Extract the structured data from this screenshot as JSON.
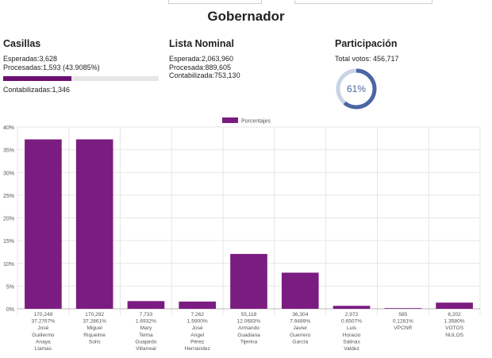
{
  "header": {
    "title": "Gobernador"
  },
  "casillas": {
    "title": "Casillas",
    "esperadas": "Esperadas:3,628",
    "procesadas": "Procesadas:1,593 (43.9085%)",
    "progress": 0.439085,
    "contabilizadas": "Contabilizadas:1,346"
  },
  "lista": {
    "title": "Lista Nominal",
    "esperada": "Esperada:2,063,960",
    "procesada": "Procesada:889,605",
    "contabilizada": "Contabilizada:753,130"
  },
  "participacion": {
    "title": "Participación",
    "total": "Total votos: 456,717",
    "percent_label": "61%",
    "value": 0.61
  },
  "colors": {
    "bar": "#7b1c80",
    "ring": "#4a66a3",
    "ring_track": "#c8d3e5",
    "progress": "#6d0f73"
  },
  "chart_data": {
    "type": "bar",
    "legend": "Porcentajes",
    "legend_position": "top-center",
    "ylim": [
      0,
      40
    ],
    "yticks": [
      "0%",
      "5%",
      "10%",
      "15%",
      "20%",
      "25%",
      "30%",
      "35%",
      "40%"
    ],
    "grid": true,
    "categories": [
      {
        "votes": "170,249",
        "pct": "37.2767%",
        "name": [
          "José",
          "Guillermo",
          "Anaya",
          "Llamas"
        ]
      },
      {
        "votes": "170,292",
        "pct": "37.2861%",
        "name": [
          "Miguel",
          "Riquelme",
          "Solís"
        ]
      },
      {
        "votes": "7,733",
        "pct": "1.6932%",
        "name": [
          "Mary",
          "Telma",
          "Guajardo",
          "Villarreal"
        ]
      },
      {
        "votes": "7,262",
        "pct": "1.5900%",
        "name": [
          "José",
          "Angel",
          "Pérez",
          "Hernández"
        ]
      },
      {
        "votes": "55,118",
        "pct": "12.0683%",
        "name": [
          "Armando",
          "Guadiana",
          "Tijerina"
        ]
      },
      {
        "votes": "36,304",
        "pct": "7.9489%",
        "name": [
          "Javier",
          "Guerrero",
          "García"
        ]
      },
      {
        "votes": "2,972",
        "pct": "0.6507%",
        "name": [
          "Luis",
          "Horacio",
          "Salinas",
          "Valdez"
        ]
      },
      {
        "votes": "585",
        "pct": "0.1281%",
        "name": [
          "VPCNR"
        ]
      },
      {
        "votes": "6,202",
        "pct": "1.3580%",
        "name": [
          "VOTOS",
          "NULOS"
        ]
      }
    ],
    "values": [
      37.2767,
      37.2861,
      1.6932,
      1.59,
      12.0683,
      7.9489,
      0.6507,
      0.1281,
      1.358
    ]
  }
}
